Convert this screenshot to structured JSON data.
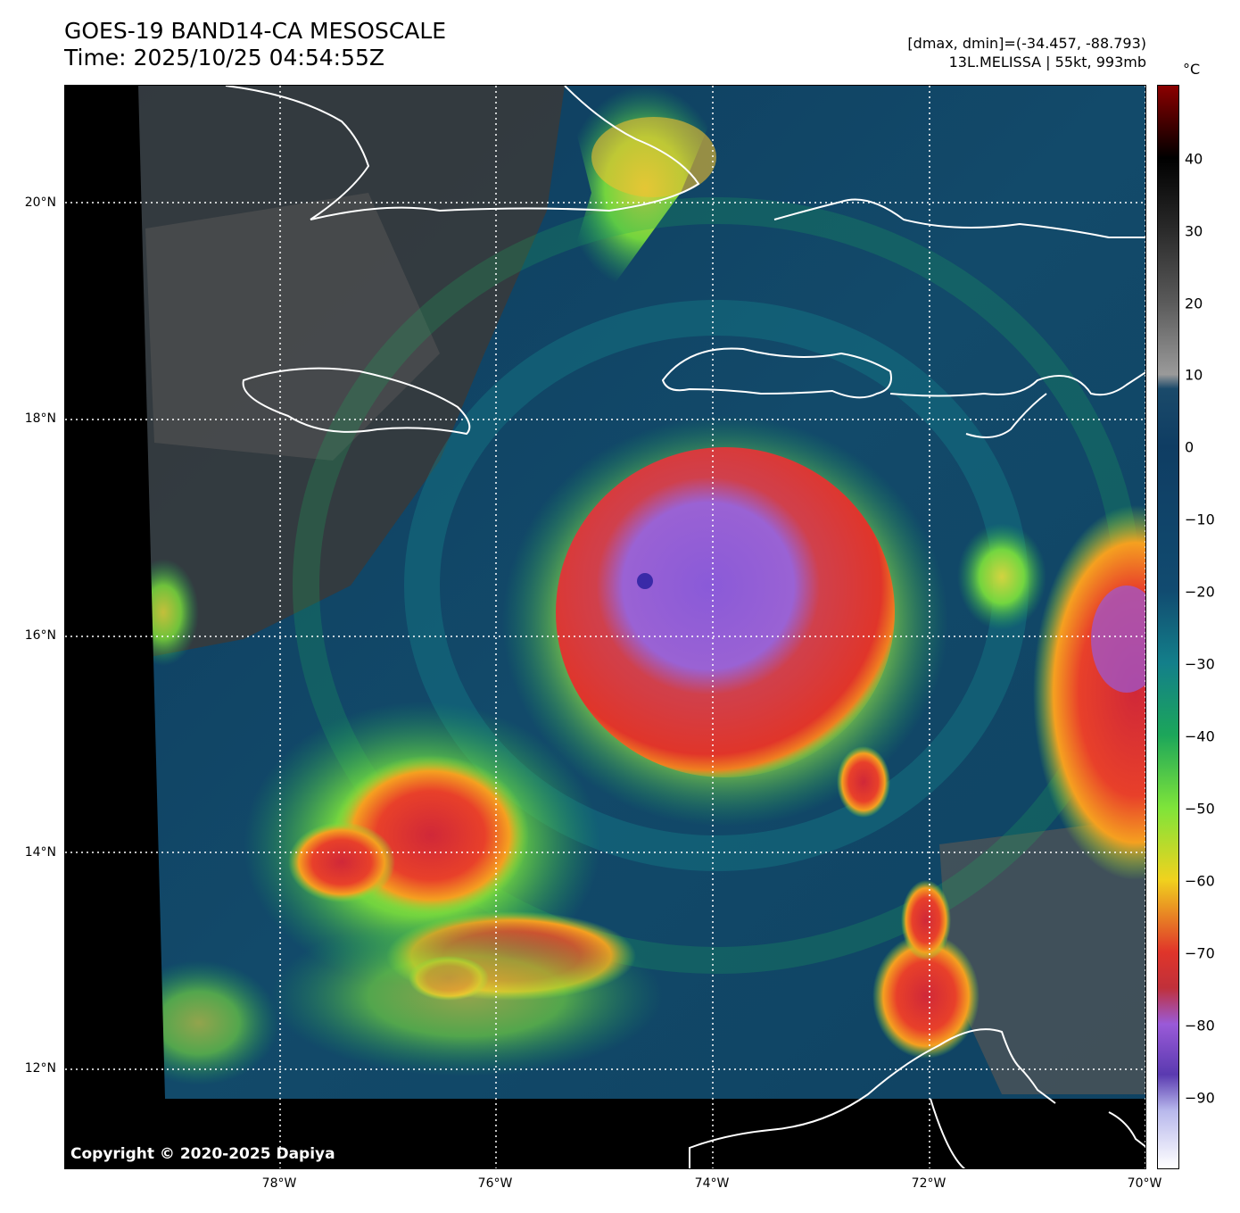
{
  "header": {
    "title_line1": "GOES-19 BAND14-CA MESOSCALE",
    "title_line2": "Time: 2025/10/25 04:54:55Z",
    "range_text": "[dmax, dmin]=(-34.457, -88.793)",
    "storm_text": "13L.MELISSA | 55kt, 993mb"
  },
  "map": {
    "copyright": "Copyright © 2020-2025 Dapiya",
    "lat_labels": [
      "20°N",
      "18°N",
      "16°N",
      "14°N",
      "12°N"
    ],
    "lon_labels": [
      "78°W",
      "76°W",
      "74°W",
      "72°W",
      "70°W"
    ],
    "coastline_color": "#ffffff",
    "gridline_style": "dotted white"
  },
  "colorbar": {
    "unit": "°C",
    "ticks": [
      "40",
      "30",
      "20",
      "10",
      "0",
      "−10",
      "−20",
      "−30",
      "−40",
      "−50",
      "−60",
      "−70",
      "−80",
      "−90"
    ],
    "stops": [
      {
        "t": 50,
        "color": "#8b0000"
      },
      {
        "t": 40,
        "color": "#000000"
      },
      {
        "t": 30,
        "color": "#2a2a2a"
      },
      {
        "t": 20,
        "color": "#5a5a5a"
      },
      {
        "t": 10,
        "color": "#9a9a9a"
      },
      {
        "t": 8,
        "color": "#1a4a6a"
      },
      {
        "t": 0,
        "color": "#0f3d63"
      },
      {
        "t": -20,
        "color": "#114b70"
      },
      {
        "t": -30,
        "color": "#137f8a"
      },
      {
        "t": -40,
        "color": "#1ca65a"
      },
      {
        "t": -50,
        "color": "#7ee43a"
      },
      {
        "t": -60,
        "color": "#f0d21e"
      },
      {
        "t": -70,
        "color": "#e0352a"
      },
      {
        "t": -75,
        "color": "#c0303a"
      },
      {
        "t": -80,
        "color": "#9a5ad8"
      },
      {
        "t": -87,
        "color": "#5a3ab0"
      },
      {
        "t": -92,
        "color": "#b8b8ec"
      },
      {
        "t": -100,
        "color": "#ffffff"
      }
    ]
  }
}
